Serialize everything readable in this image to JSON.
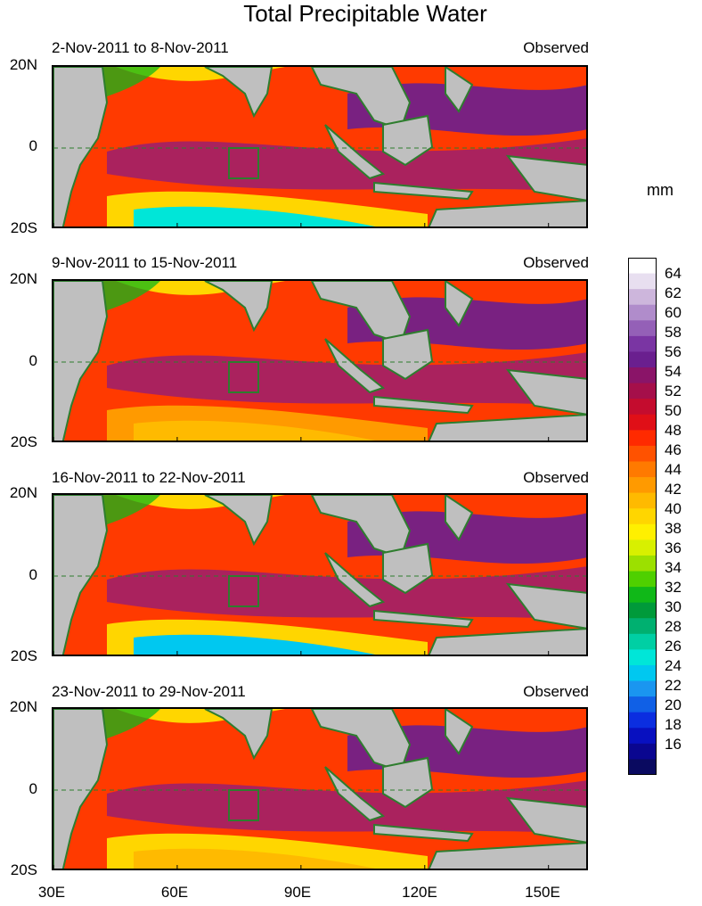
{
  "title": "Total Precipitable Water",
  "units_label": "mm",
  "panels": [
    {
      "date_range": "2-Nov-2011 to 8-Nov-2011",
      "status": "Observed"
    },
    {
      "date_range": "9-Nov-2011 to 15-Nov-2011",
      "status": "Observed"
    },
    {
      "date_range": "16-Nov-2011 to 22-Nov-2011",
      "status": "Observed"
    },
    {
      "date_range": "23-Nov-2011 to 29-Nov-2011",
      "status": "Observed"
    }
  ],
  "lat_labels": [
    "20N",
    "0",
    "20S"
  ],
  "lon_labels": [
    "30E",
    "60E",
    "90E",
    "120E",
    "150E"
  ],
  "colorbar": {
    "labels": [
      "64",
      "62",
      "60",
      "58",
      "56",
      "54",
      "52",
      "50",
      "48",
      "46",
      "44",
      "42",
      "40",
      "38",
      "36",
      "34",
      "32",
      "30",
      "28",
      "26",
      "24",
      "22",
      "20",
      "18",
      "16"
    ],
    "colors_top_to_bottom": [
      "#ffffff",
      "#e8dff0",
      "#cdb6dc",
      "#b08ccb",
      "#9460b7",
      "#7a35a3",
      "#6a1f8f",
      "#8a1468",
      "#a50f4a",
      "#c40c2e",
      "#e00f17",
      "#ff2a00",
      "#ff5200",
      "#ff7a00",
      "#ff9a00",
      "#ffba00",
      "#ffd600",
      "#fff000",
      "#d8f000",
      "#9ce000",
      "#4fd000",
      "#10b818",
      "#009a3a",
      "#00b070",
      "#00cfa4",
      "#00e6d8",
      "#00c8f0",
      "#1a96f0",
      "#1060e6",
      "#0b2ee0",
      "#0810c0",
      "#0a0690",
      "#0a0a60"
    ]
  }
}
